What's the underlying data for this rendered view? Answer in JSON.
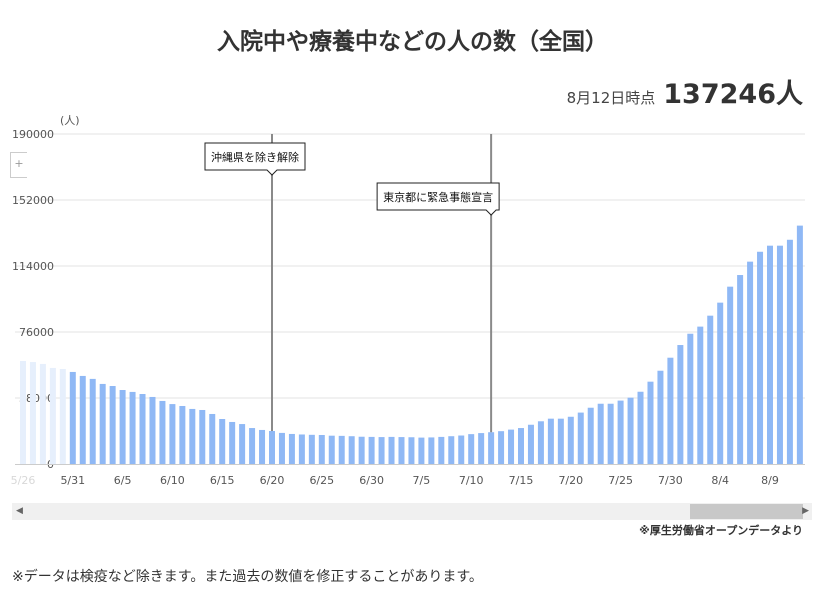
{
  "title": "入院中や療養中などの人の数（全国）",
  "as_of": {
    "label": "8月12日時点",
    "value": "137246人"
  },
  "source": "※厚生労働省オープンデータより",
  "note": "※データは検疫など除きます。また過去の数値を修正することがあります。",
  "zoom_control": "+",
  "scrollbar": {
    "left_arrow": "◀",
    "right_arrow": "▶"
  },
  "colors": {
    "bar": "#8fb8f5",
    "bar_faded": "#e6effc",
    "grid": "#e3e3e3",
    "annotation_line": "#8a8a8a"
  },
  "chart_data": {
    "type": "bar",
    "title": "入院中や療養中などの人の数（全国）",
    "ylabel": "(人)",
    "xlabel": "",
    "ylim": [
      0,
      190000
    ],
    "yticks": [
      0,
      38000,
      76000,
      114000,
      152000,
      190000
    ],
    "grid": true,
    "start_date": "5/26",
    "faded_count": 5,
    "xtick_labels": [
      "5/26",
      "5/31",
      "6/5",
      "6/10",
      "6/15",
      "6/20",
      "6/25",
      "6/30",
      "7/5",
      "7/10",
      "7/15",
      "7/20",
      "7/25",
      "7/30",
      "8/4",
      "8/9"
    ],
    "values": [
      59300,
      58700,
      57600,
      55300,
      54700,
      53000,
      50700,
      49000,
      46100,
      44900,
      42600,
      41500,
      40300,
      38600,
      36300,
      34500,
      33400,
      31700,
      31100,
      28800,
      25900,
      24200,
      23000,
      20700,
      19600,
      19000,
      17900,
      17300,
      17000,
      16800,
      16700,
      16300,
      16200,
      16000,
      15700,
      15600,
      15500,
      15600,
      15500,
      15400,
      15200,
      15300,
      15600,
      16000,
      16400,
      17200,
      17800,
      18300,
      18900,
      19800,
      20700,
      22600,
      24600,
      26100,
      26100,
      27200,
      29600,
      32400,
      34700,
      34700,
      36500,
      38200,
      41600,
      47400,
      53700,
      61200,
      68500,
      75000,
      79100,
      85400,
      92900,
      102100,
      108800,
      116500,
      122200,
      125700,
      125700,
      129100,
      137246
    ],
    "annotations": [
      {
        "date": "6/20",
        "label": "沖縄県を除き解除"
      },
      {
        "date": "7/12",
        "label": "東京都に緊急事態宣言"
      }
    ]
  }
}
